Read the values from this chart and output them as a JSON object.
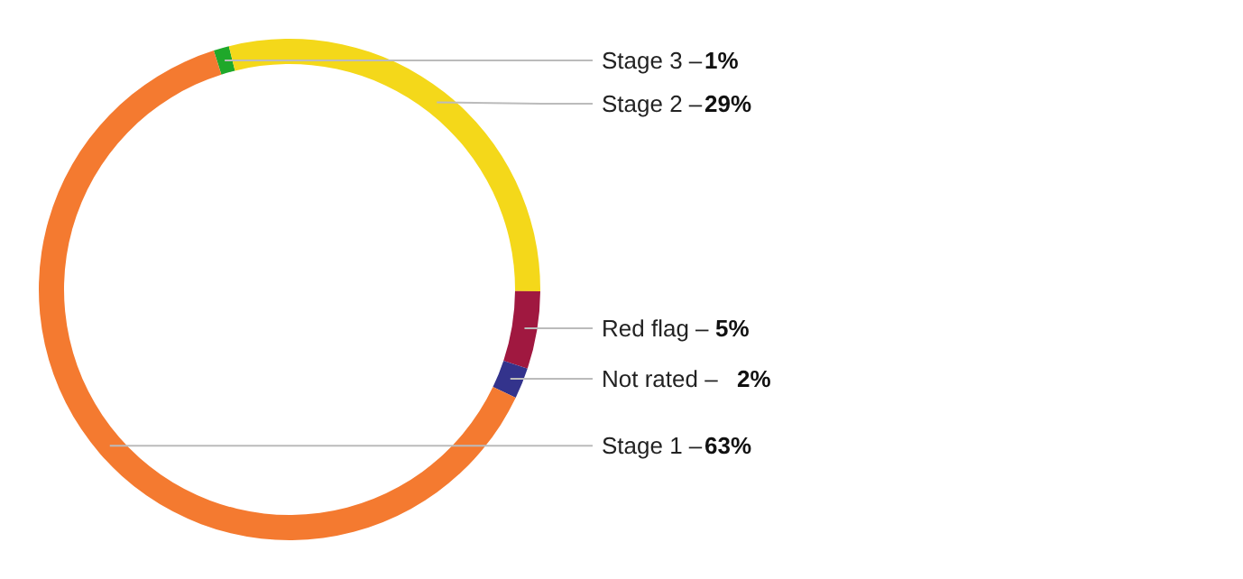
{
  "chart_data": {
    "type": "donut",
    "categories": [
      "Stage 3 –",
      "Stage 2 –",
      "Red flag –",
      "Not rated  –",
      "Stage 1 –"
    ],
    "values": [
      1,
      29,
      5,
      2,
      63
    ],
    "value_labels": [
      "1%",
      "29%",
      "5%",
      "2%",
      "63%"
    ],
    "colors": [
      "#1fa82a",
      "#f4d81a",
      "#a01840",
      "#33338c",
      "#f47a30"
    ]
  }
}
